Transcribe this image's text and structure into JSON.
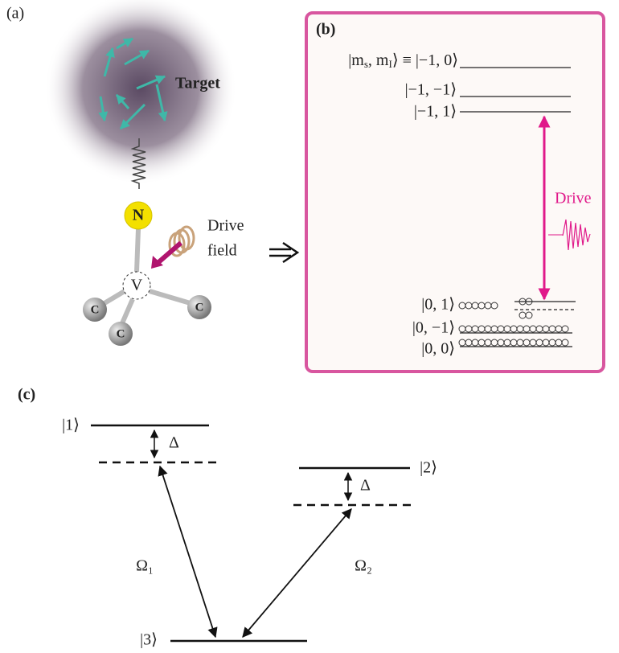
{
  "panel_a": {
    "label": "(a)",
    "target": "Target",
    "nitrogen": "N",
    "vacancy": "V",
    "carbons": [
      "C",
      "C",
      "C"
    ],
    "drive_field": [
      "Drive",
      "field"
    ]
  },
  "panel_b": {
    "label": "(b)",
    "top_level_parts": [
      "|m",
      "s",
      ", m",
      "I",
      "⟩ ≡ |−1, 0⟩"
    ],
    "levels": [
      "|−1, −1⟩",
      "|−1, 1⟩",
      "|0, 1⟩",
      "|0, −1⟩",
      "|0, 0⟩"
    ],
    "drive": "Drive"
  },
  "panel_c": {
    "label": "(c)",
    "levels": [
      "|1⟩",
      "|2⟩",
      "|3⟩"
    ],
    "detunings": [
      "Δ",
      "Δ"
    ],
    "couplings": [
      "Ω₁",
      "Ω₂"
    ]
  }
}
